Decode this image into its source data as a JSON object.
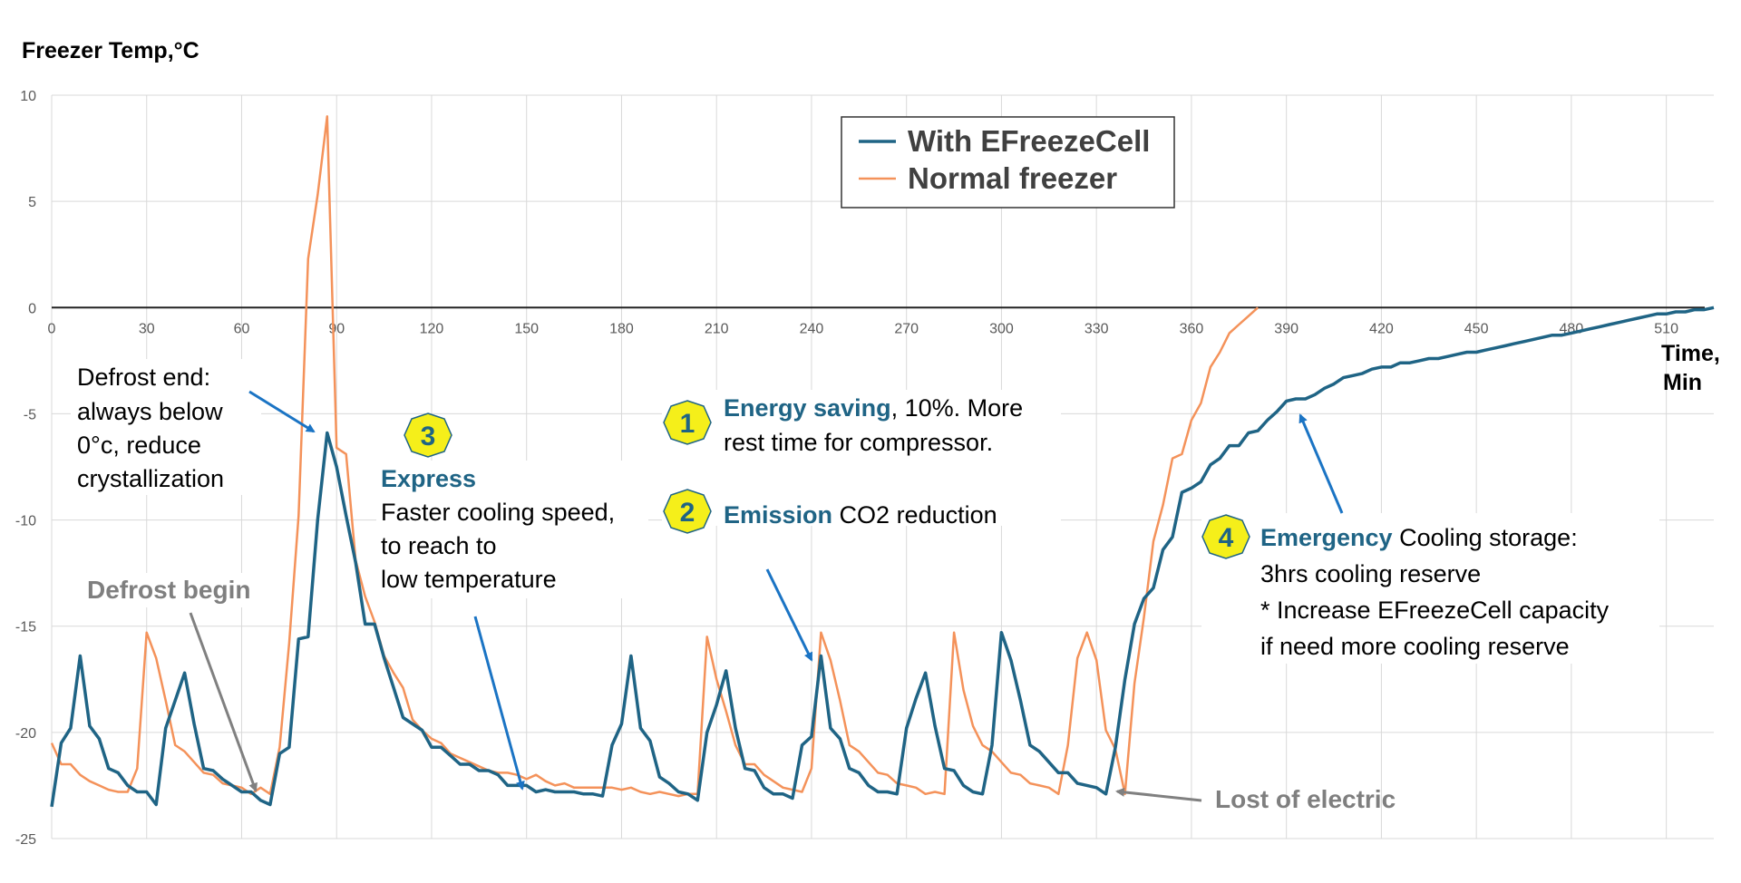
{
  "chart_data": {
    "type": "line",
    "ylabel": "Freezer Temp,°C",
    "xlabel_line1": "Time,",
    "xlabel_line2": "Min",
    "xlim": [
      0,
      525
    ],
    "ylim": [
      -25,
      10
    ],
    "x_ticks": [
      0,
      30,
      60,
      90,
      120,
      150,
      180,
      210,
      240,
      270,
      300,
      330,
      360,
      390,
      420,
      450,
      480,
      510
    ],
    "y_ticks": [
      10,
      5,
      0,
      -5,
      -10,
      -15,
      -20,
      -25
    ],
    "colors": {
      "efreeze": "#1f6485",
      "normal": "#f4925a",
      "arrow_blue": "#1b74c4",
      "arrow_grey": "#808080",
      "badge_fill": "#f5ef1a",
      "badge_stroke": "#1f6485"
    },
    "legend": [
      "With EFreezeCell",
      "Normal freezer"
    ],
    "series": [
      {
        "name": "With EFreezeCell",
        "x": [
          0,
          3,
          6,
          9,
          12,
          15,
          18,
          21,
          24,
          27,
          30,
          33,
          36,
          39,
          42,
          45,
          48,
          51,
          54,
          57,
          60,
          63,
          66,
          69,
          72,
          75,
          78,
          81,
          84,
          87,
          90,
          93,
          96,
          99,
          102,
          105,
          108,
          111,
          114,
          117,
          120,
          123,
          126,
          129,
          132,
          135,
          138,
          141,
          144,
          147,
          150,
          153,
          156,
          159,
          162,
          165,
          168,
          171,
          174,
          177,
          180,
          183,
          186,
          189,
          192,
          195,
          198,
          201,
          204,
          207,
          210,
          213,
          216,
          219,
          222,
          225,
          228,
          231,
          234,
          237,
          240,
          243,
          246,
          249,
          252,
          255,
          258,
          261,
          264,
          267,
          270,
          273,
          276,
          279,
          282,
          285,
          288,
          291,
          294,
          297,
          300,
          303,
          306,
          309,
          312,
          315,
          318,
          321,
          324,
          327,
          330,
          333,
          336,
          339,
          342,
          345,
          348,
          351,
          354,
          357,
          360,
          363,
          366,
          369,
          372,
          375,
          378,
          381,
          384,
          387,
          390,
          393,
          396,
          399,
          402,
          405,
          408,
          411,
          414,
          417,
          420,
          423,
          426,
          429,
          432,
          435,
          438,
          441,
          444,
          447,
          450,
          453,
          456,
          459,
          462,
          465,
          468,
          471,
          474,
          477,
          480,
          483,
          486,
          489,
          492,
          495,
          498,
          501,
          504,
          507,
          510,
          513,
          516,
          519,
          522,
          525
        ],
        "values": [
          -23.5,
          -20.5,
          -19.8,
          -16.4,
          -19.7,
          -20.3,
          -21.7,
          -21.9,
          -22.5,
          -22.8,
          -22.8,
          -23.4,
          -19.8,
          -18.5,
          -17.2,
          -19.6,
          -21.7,
          -21.8,
          -22.2,
          -22.5,
          -22.8,
          -22.8,
          -23.2,
          -23.4,
          -21.0,
          -20.7,
          -15.6,
          -15.5,
          -10.0,
          -5.9,
          -7.5,
          -9.8,
          -12.0,
          -14.9,
          -14.9,
          -16.5,
          -17.9,
          -19.3,
          -19.6,
          -19.9,
          -20.7,
          -20.7,
          -21.1,
          -21.5,
          -21.5,
          -21.8,
          -21.8,
          -22.0,
          -22.5,
          -22.5,
          -22.5,
          -22.8,
          -22.7,
          -22.8,
          -22.8,
          -22.8,
          -22.9,
          -22.9,
          -23.0,
          -20.6,
          -19.6,
          -16.4,
          -19.8,
          -20.4,
          -22.1,
          -22.4,
          -22.8,
          -22.9,
          -23.2,
          -20.0,
          -18.7,
          -17.1,
          -19.8,
          -21.7,
          -21.8,
          -22.6,
          -22.9,
          -22.9,
          -23.1,
          -20.6,
          -20.2,
          -16.4,
          -19.8,
          -20.3,
          -21.7,
          -21.9,
          -22.5,
          -22.8,
          -22.8,
          -22.9,
          -19.8,
          -18.4,
          -17.2,
          -19.7,
          -21.7,
          -21.8,
          -22.5,
          -22.8,
          -22.9,
          -20.6,
          -15.3,
          -16.6,
          -18.5,
          -20.6,
          -20.9,
          -21.4,
          -21.9,
          -21.9,
          -22.4,
          -22.5,
          -22.6,
          -22.9,
          -20.7,
          -17.5,
          -14.9,
          -13.7,
          -13.2,
          -11.4,
          -10.8,
          -8.7,
          -8.5,
          -8.2,
          -7.4,
          -7.1,
          -6.5,
          -6.5,
          -5.9,
          -5.8,
          -5.3,
          -4.9,
          -4.4,
          -4.3,
          -4.3,
          -4.1,
          -3.8,
          -3.6,
          -3.3,
          -3.2,
          -3.1,
          -2.9,
          -2.8,
          -2.8,
          -2.6,
          -2.6,
          -2.5,
          -2.4,
          -2.4,
          -2.3,
          -2.2,
          -2.1,
          -2.1,
          -2.0,
          -1.9,
          -1.8,
          -1.7,
          -1.6,
          -1.5,
          -1.4,
          -1.3,
          -1.3,
          -1.2,
          -1.1,
          -1.0,
          -0.9,
          -0.8,
          -0.7,
          -0.6,
          -0.5,
          -0.4,
          -0.3,
          -0.3,
          -0.2,
          -0.2,
          -0.1,
          -0.1,
          0.0
        ]
      },
      {
        "name": "Normal freezer",
        "x": [
          0,
          3,
          6,
          9,
          12,
          15,
          18,
          21,
          24,
          27,
          30,
          33,
          36,
          39,
          42,
          45,
          48,
          51,
          54,
          57,
          60,
          63,
          66,
          69,
          72,
          75,
          78,
          81,
          84,
          87,
          90,
          93,
          96,
          99,
          102,
          105,
          108,
          111,
          114,
          117,
          120,
          123,
          126,
          129,
          132,
          135,
          138,
          141,
          144,
          147,
          150,
          153,
          156,
          159,
          162,
          165,
          168,
          171,
          174,
          177,
          180,
          183,
          186,
          189,
          192,
          195,
          198,
          201,
          204,
          207,
          210,
          213,
          216,
          219,
          222,
          225,
          228,
          231,
          234,
          237,
          240,
          243,
          246,
          249,
          252,
          255,
          258,
          261,
          264,
          267,
          270,
          273,
          276,
          279,
          282,
          285,
          288,
          291,
          294,
          297,
          300,
          303,
          306,
          309,
          312,
          315,
          318,
          321,
          324,
          327,
          330,
          333,
          336,
          339,
          342,
          345,
          348,
          351,
          354,
          357,
          360,
          363,
          366,
          369,
          372,
          375,
          378,
          381
        ],
        "values": [
          -20.5,
          -21.5,
          -21.5,
          -22.0,
          -22.3,
          -22.5,
          -22.7,
          -22.8,
          -22.8,
          -21.7,
          -15.3,
          -16.5,
          -18.5,
          -20.6,
          -20.9,
          -21.4,
          -21.9,
          -22.0,
          -22.4,
          -22.5,
          -22.6,
          -22.9,
          -22.6,
          -22.9,
          -20.7,
          -15.8,
          -9.8,
          2.3,
          5.3,
          9.0,
          -6.6,
          -6.9,
          -11.9,
          -13.6,
          -14.8,
          -16.4,
          -17.2,
          -17.9,
          -19.4,
          -19.9,
          -20.3,
          -20.5,
          -21.0,
          -21.2,
          -21.4,
          -21.6,
          -21.8,
          -21.9,
          -21.9,
          -22.0,
          -22.2,
          -22.0,
          -22.3,
          -22.5,
          -22.4,
          -22.6,
          -22.6,
          -22.6,
          -22.6,
          -22.6,
          -22.7,
          -22.6,
          -22.8,
          -22.9,
          -22.8,
          -22.9,
          -23.0,
          -22.9,
          -22.9,
          -15.5,
          -17.5,
          -19.0,
          -20.6,
          -21.5,
          -21.5,
          -22.0,
          -22.3,
          -22.6,
          -22.7,
          -22.8,
          -21.7,
          -15.3,
          -16.6,
          -18.5,
          -20.6,
          -20.9,
          -21.4,
          -21.9,
          -22.0,
          -22.4,
          -22.5,
          -22.6,
          -22.9,
          -22.8,
          -22.9,
          -15.3,
          -18.0,
          -19.7,
          -20.6,
          -20.9,
          -21.4,
          -21.9,
          -22.0,
          -22.4,
          -22.5,
          -22.6,
          -22.9,
          -20.6,
          -16.5,
          -15.3,
          -16.6,
          -19.9,
          -20.8,
          -22.9,
          -17.7,
          -14.6,
          -11.0,
          -9.3,
          -7.1,
          -6.9,
          -5.3,
          -4.5,
          -2.8,
          -2.1,
          -1.2,
          -0.8,
          -0.4,
          0.0
        ]
      }
    ]
  },
  "annotations": {
    "defrost_end": [
      "Defrost end:",
      "always below",
      "0°c, reduce",
      "crystallization"
    ],
    "defrost_begin": "Defrost begin",
    "express_number": "3",
    "express_title": "Express",
    "express_lines": [
      "Faster cooling speed,",
      "to reach to",
      "low temperature"
    ],
    "energy_number": "1",
    "energy_title": "Energy saving",
    "energy_rest": ", 10%. More",
    "energy_line2": "rest time for compressor.",
    "emission_number": "2",
    "emission_title": "Emission",
    "emission_rest": " CO2 reduction",
    "emergency_number": "4",
    "emergency_title": "Emergency",
    "emergency_rest": " Cooling storage:",
    "emergency_lines": [
      "3hrs cooling reserve",
      "* Increase EFreezeCell capacity",
      "if need more cooling reserve"
    ],
    "lost_electric": "Lost of electric"
  }
}
